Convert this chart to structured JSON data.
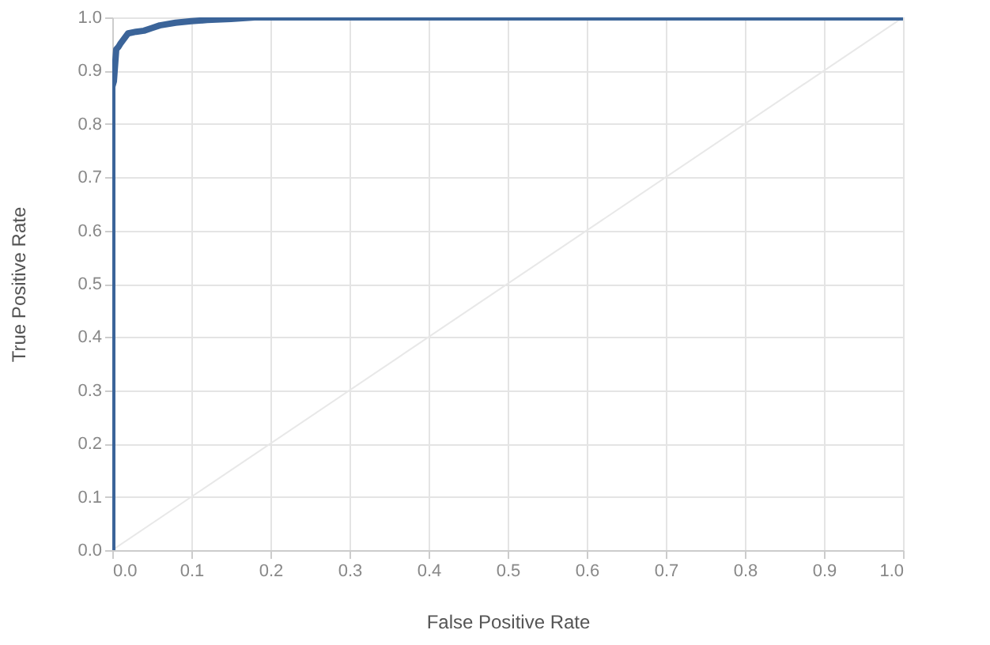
{
  "chart_data": {
    "type": "line",
    "xlabel": "False Positive Rate",
    "ylabel": "True Positive Rate",
    "xlim": [
      0,
      1
    ],
    "ylim": [
      0,
      1
    ],
    "xticks": [
      {
        "value": 0,
        "label": "0.0"
      },
      0.1,
      0.2,
      0.3,
      0.4,
      0.5,
      0.6,
      0.7,
      0.8,
      0.9,
      {
        "value": 1,
        "label": "1.0"
      }
    ],
    "yticks": [
      {
        "value": 0,
        "label": "0.0"
      },
      0.1,
      0.2,
      0.3,
      0.4,
      0.5,
      0.6,
      0.7,
      0.8,
      0.9,
      {
        "value": 1,
        "label": "1.0"
      }
    ],
    "grid": true,
    "marker": "none",
    "line_style": "solid",
    "series": [
      {
        "color": "#e8e8e8",
        "x": [
          0,
          1
        ],
        "values": [
          0,
          1
        ]
      },
      {
        "color": "#3b6499",
        "x": [
          0,
          0,
          0.002,
          0.004,
          0.005,
          0.008,
          0.01,
          0.015,
          0.02,
          0.03,
          0.04,
          0.05,
          0.06,
          0.08,
          0.1,
          0.12,
          0.15,
          0.18,
          1
        ],
        "values": [
          0,
          0.87,
          0.88,
          0.92,
          0.94,
          0.945,
          0.95,
          0.96,
          0.97,
          0.973,
          0.975,
          0.98,
          0.985,
          0.99,
          0.993,
          0.995,
          0.997,
          1,
          1
        ]
      }
    ]
  }
}
